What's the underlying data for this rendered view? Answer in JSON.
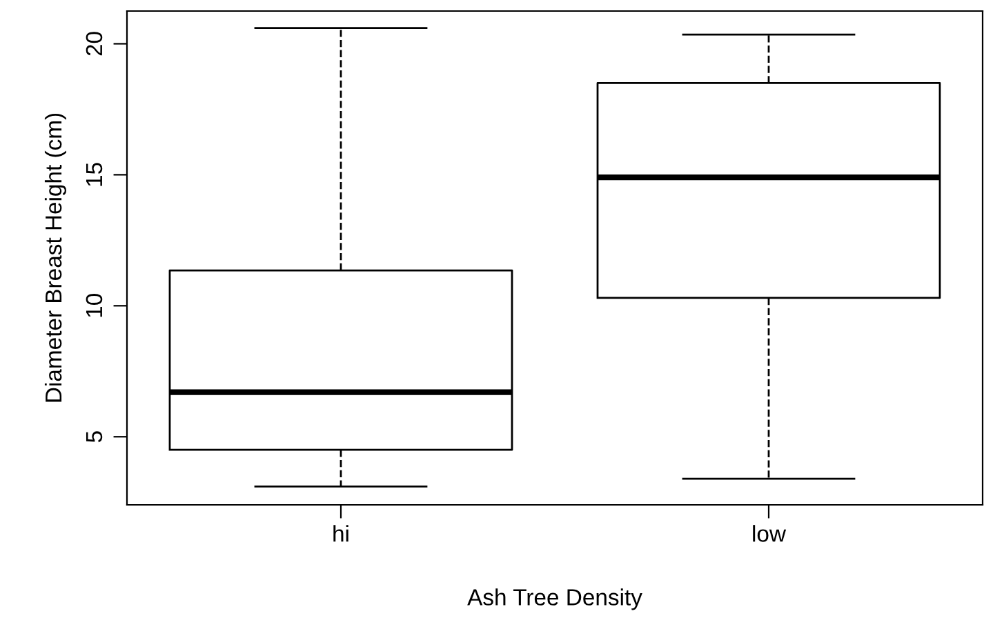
{
  "chart_data": {
    "type": "box",
    "xlabel": "Ash Tree Density",
    "ylabel": "Diameter Breast Height (cm)",
    "categories": [
      "hi",
      "low"
    ],
    "boxes": [
      {
        "low": 3.1,
        "q1": 4.5,
        "median": 6.7,
        "q3": 11.35,
        "high": 20.6
      },
      {
        "low": 3.4,
        "q1": 10.3,
        "median": 14.9,
        "q3": 18.5,
        "high": 20.35
      }
    ],
    "ylim": [
      2.4,
      21.25
    ],
    "yticks": [
      5,
      10,
      15,
      20
    ],
    "grid": false,
    "legend": false
  }
}
